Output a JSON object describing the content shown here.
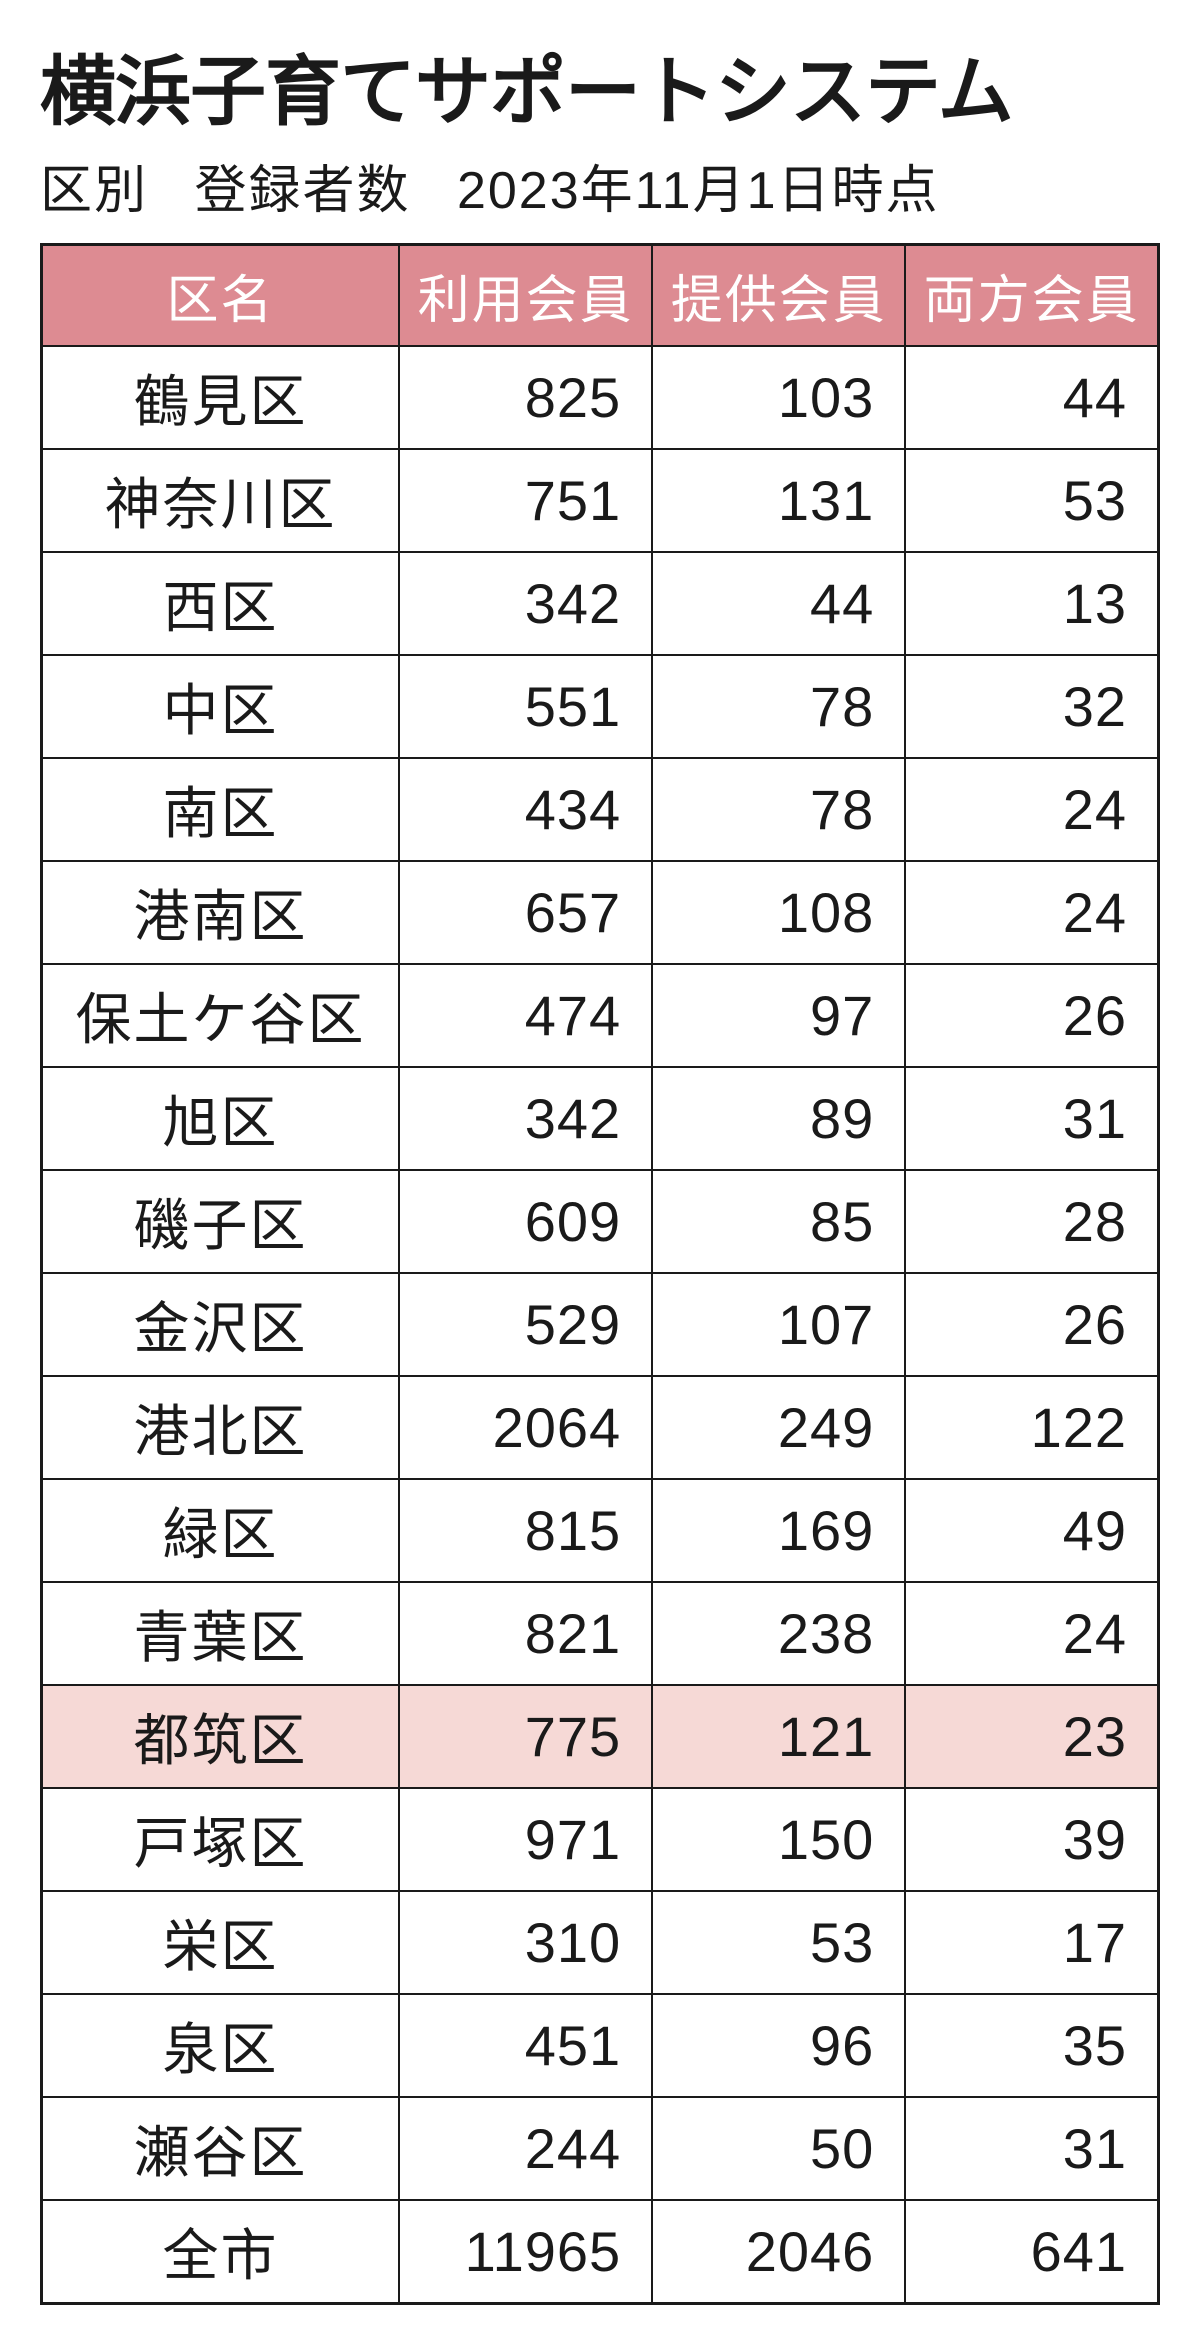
{
  "title": "横浜子育てサポートシステム",
  "subtitle_parts": [
    "区別",
    "登録者数",
    "2023年11月1日時点"
  ],
  "table": {
    "columns": [
      "区名",
      "利用会員",
      "提供会員",
      "両方会員"
    ],
    "column_widths": [
      "32%",
      "22.66%",
      "22.66%",
      "22.66%"
    ],
    "header_bg": "#dd8b92",
    "header_fg": "#ffffff",
    "highlight_bg": "#f6d9d6",
    "border_color": "#1a1a1a",
    "text_color": "#1a1a1a",
    "highlighted_row_index": 13,
    "rows": [
      {
        "ward": "鶴見区",
        "user": 825,
        "provider": 103,
        "both": 44
      },
      {
        "ward": "神奈川区",
        "user": 751,
        "provider": 131,
        "both": 53
      },
      {
        "ward": "西区",
        "user": 342,
        "provider": 44,
        "both": 13
      },
      {
        "ward": "中区",
        "user": 551,
        "provider": 78,
        "both": 32
      },
      {
        "ward": "南区",
        "user": 434,
        "provider": 78,
        "both": 24
      },
      {
        "ward": "港南区",
        "user": 657,
        "provider": 108,
        "both": 24
      },
      {
        "ward": "保土ケ谷区",
        "user": 474,
        "provider": 97,
        "both": 26
      },
      {
        "ward": "旭区",
        "user": 342,
        "provider": 89,
        "both": 31
      },
      {
        "ward": "磯子区",
        "user": 609,
        "provider": 85,
        "both": 28
      },
      {
        "ward": "金沢区",
        "user": 529,
        "provider": 107,
        "both": 26
      },
      {
        "ward": "港北区",
        "user": 2064,
        "provider": 249,
        "both": 122
      },
      {
        "ward": "緑区",
        "user": 815,
        "provider": 169,
        "both": 49
      },
      {
        "ward": "青葉区",
        "user": 821,
        "provider": 238,
        "both": 24
      },
      {
        "ward": "都筑区",
        "user": 775,
        "provider": 121,
        "both": 23
      },
      {
        "ward": "戸塚区",
        "user": 971,
        "provider": 150,
        "both": 39
      },
      {
        "ward": "栄区",
        "user": 310,
        "provider": 53,
        "both": 17
      },
      {
        "ward": "泉区",
        "user": 451,
        "provider": 96,
        "both": 35
      },
      {
        "ward": "瀬谷区",
        "user": 244,
        "provider": 50,
        "both": 31
      },
      {
        "ward": "全市",
        "user": 11965,
        "provider": 2046,
        "both": 641
      }
    ]
  }
}
